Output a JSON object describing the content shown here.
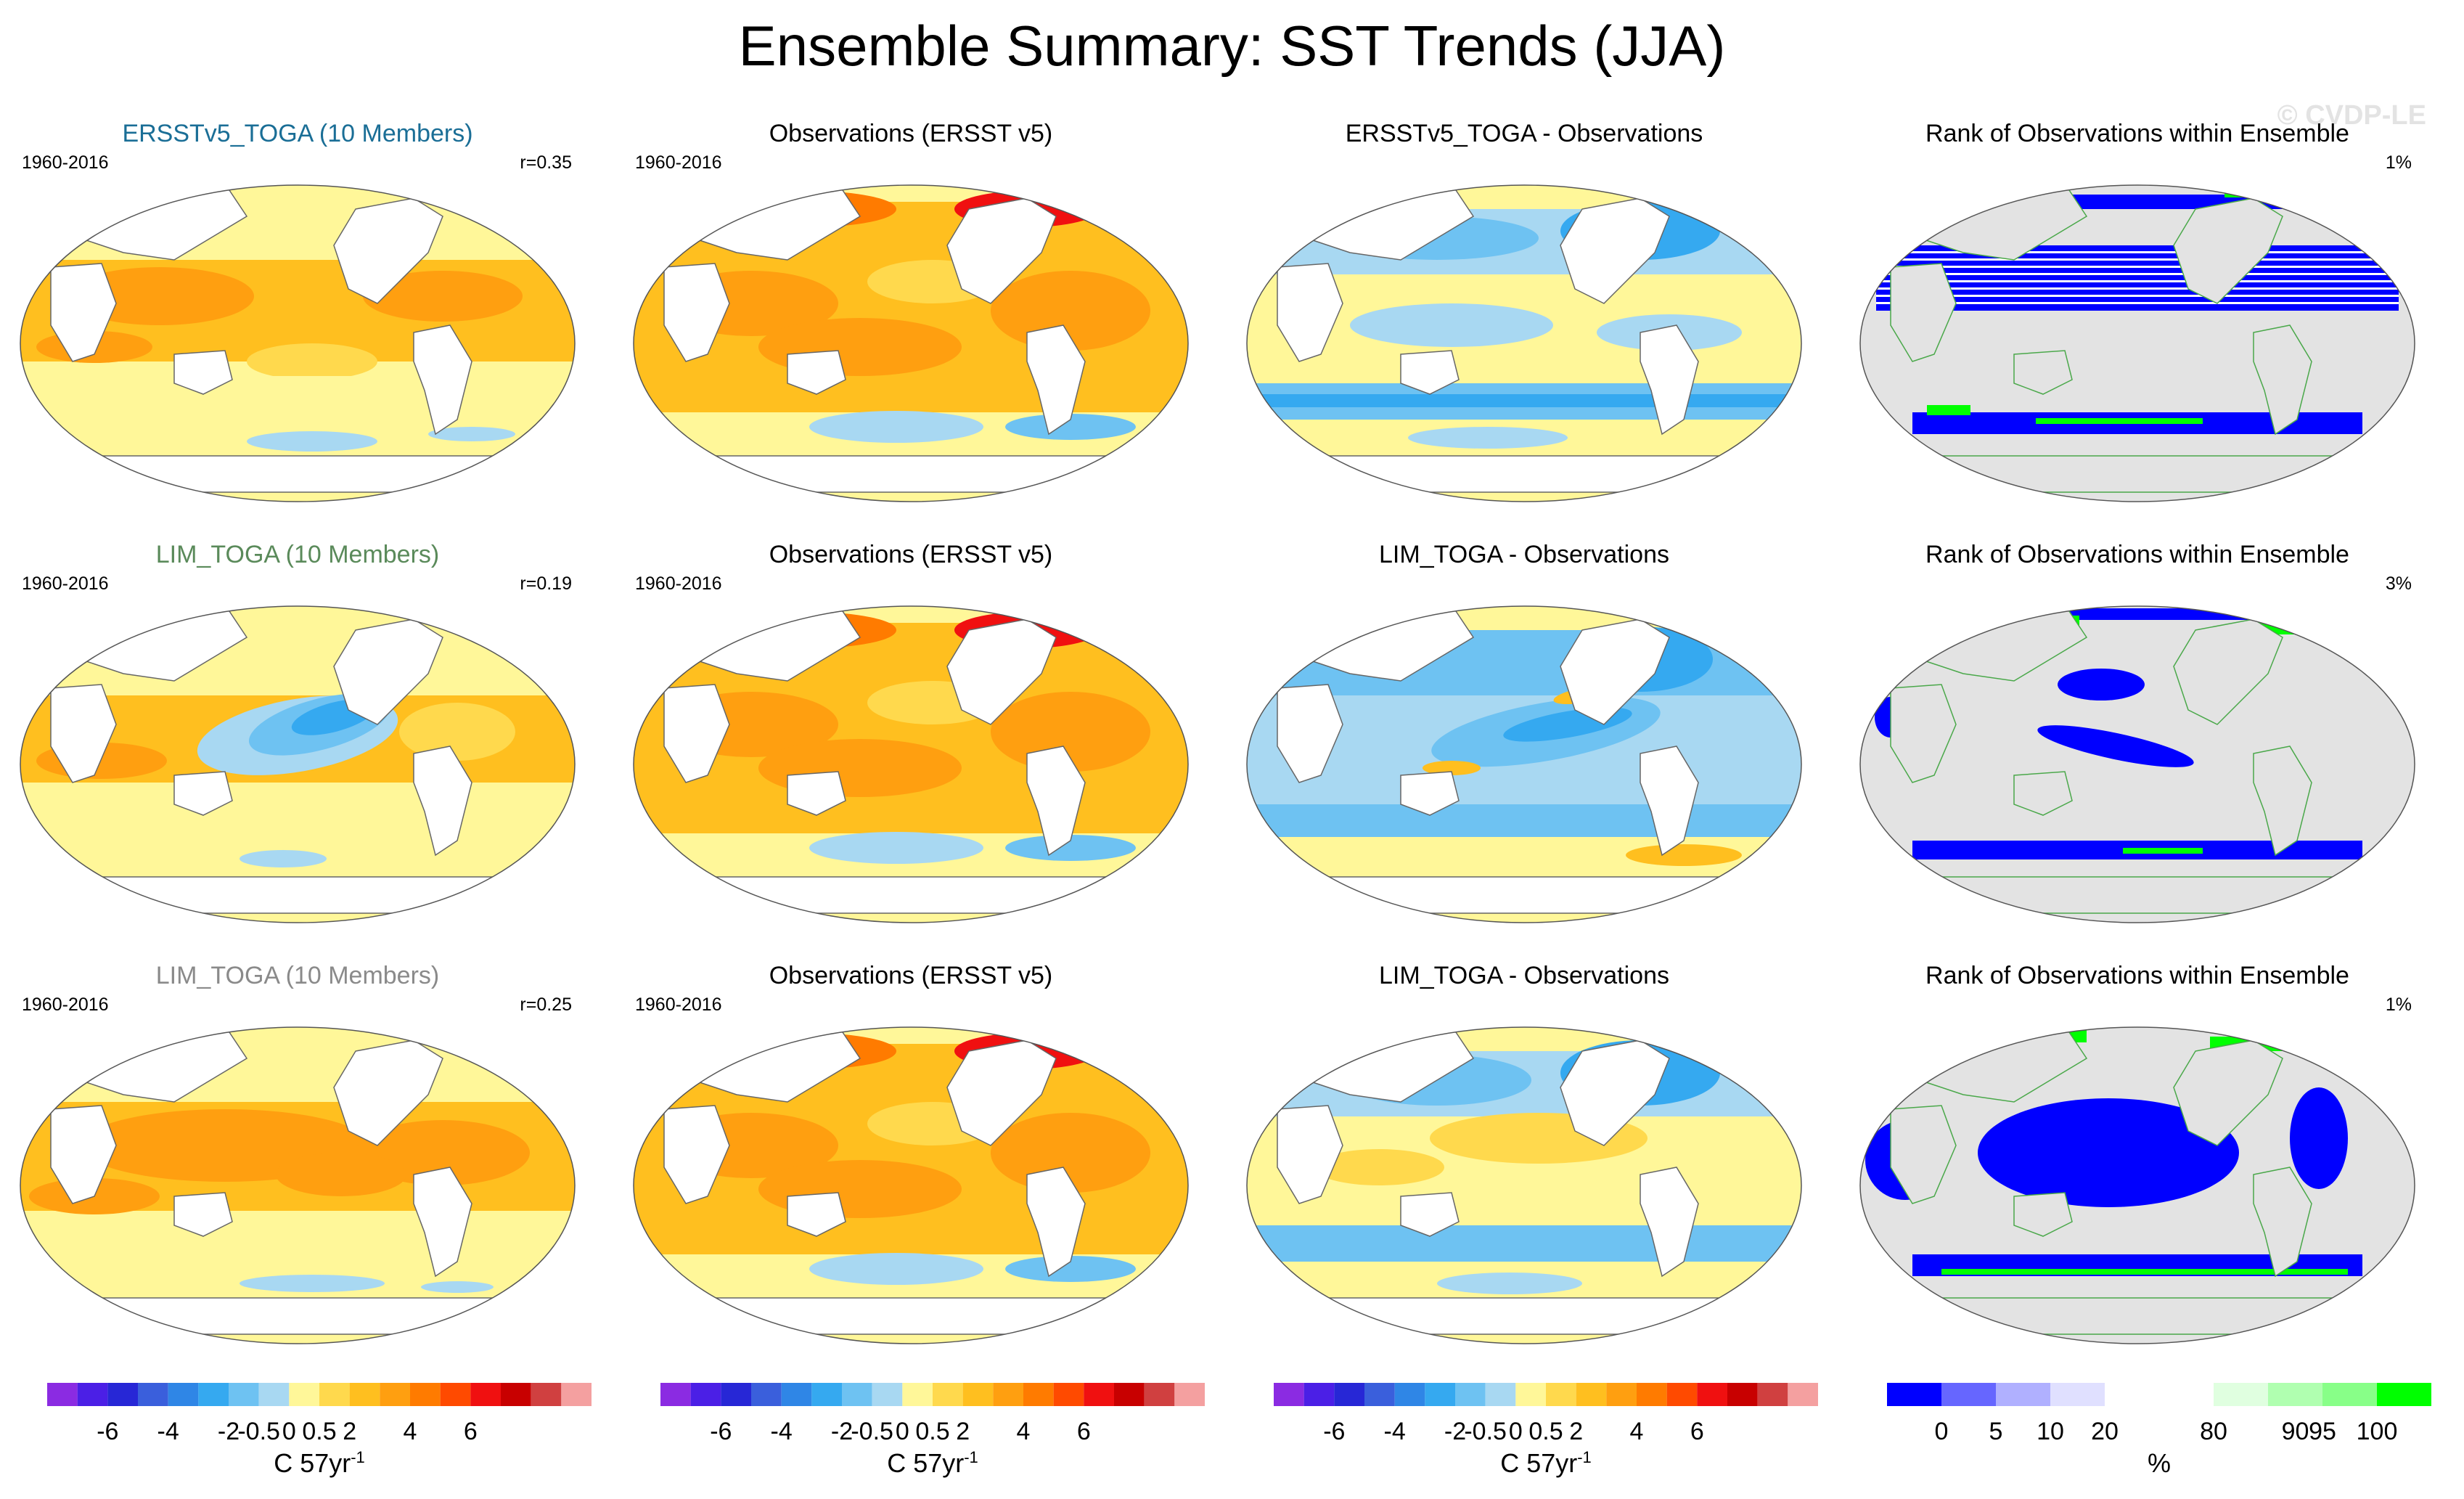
{
  "title": "Ensemble Summary: SST Trends (JJA)",
  "watermark": "© CVDP-LE",
  "rows": [
    {
      "panels": [
        {
          "kind": "model",
          "title": "ERSSTv5_TOGA (10 Members)",
          "title_color": "#1a6e96",
          "period": "1960-2016",
          "r": "r=0.35",
          "pattern": "m1"
        },
        {
          "kind": "obs",
          "title": "Observations (ERSST v5)",
          "title_color": "#000000",
          "period": "1960-2016",
          "r": "",
          "pattern": "obs"
        },
        {
          "kind": "diff",
          "title": "ERSSTv5_TOGA - Observations",
          "title_color": "#000000",
          "period": "",
          "r": "",
          "pattern": "d1"
        },
        {
          "kind": "rank",
          "title": "Rank of Observations within Ensemble",
          "title_color": "#000000",
          "period": "",
          "r": "1%",
          "pattern": "k1"
        }
      ]
    },
    {
      "panels": [
        {
          "kind": "model",
          "title": "LIM_TOGA (10 Members)",
          "title_color": "#5a8a5a",
          "period": "1960-2016",
          "r": "r=0.19",
          "pattern": "m2"
        },
        {
          "kind": "obs",
          "title": "Observations (ERSST v5)",
          "title_color": "#000000",
          "period": "1960-2016",
          "r": "",
          "pattern": "obs"
        },
        {
          "kind": "diff",
          "title": "LIM_TOGA - Observations",
          "title_color": "#000000",
          "period": "",
          "r": "",
          "pattern": "d2"
        },
        {
          "kind": "rank",
          "title": "Rank of Observations within Ensemble",
          "title_color": "#000000",
          "period": "",
          "r": "3%",
          "pattern": "k2"
        }
      ]
    },
    {
      "panels": [
        {
          "kind": "model",
          "title": "LIM_TOGA (10 Members)",
          "title_color": "#8a8a8a",
          "period": "1960-2016",
          "r": "r=0.25",
          "pattern": "m3"
        },
        {
          "kind": "obs",
          "title": "Observations (ERSST v5)",
          "title_color": "#000000",
          "period": "1960-2016",
          "r": "",
          "pattern": "obs"
        },
        {
          "kind": "diff",
          "title": "LIM_TOGA - Observations",
          "title_color": "#000000",
          "period": "",
          "r": "",
          "pattern": "d3"
        },
        {
          "kind": "rank",
          "title": "Rank of Observations within Ensemble",
          "title_color": "#000000",
          "period": "",
          "r": "1%",
          "pattern": "k3"
        }
      ]
    }
  ],
  "colorbars": {
    "sst": {
      "colors": [
        "#8b2be2",
        "#4b1fe6",
        "#2727d6",
        "#3a5fdc",
        "#2f86e6",
        "#35a9f0",
        "#6ec2f2",
        "#a8d8f2",
        "#fff799",
        "#ffd94d",
        "#ffbf1f",
        "#ff9f10",
        "#ff7b00",
        "#ff4a00",
        "#f01010",
        "#c80000",
        "#d04040",
        "#f4a0a0"
      ],
      "ticks": [
        {
          "label": "-6",
          "pos": 2
        },
        {
          "label": "-4",
          "pos": 4
        },
        {
          "label": "-2",
          "pos": 6
        },
        {
          "label": "-0.5",
          "pos": 7
        },
        {
          "label": "0",
          "pos": 8
        },
        {
          "label": "0.5",
          "pos": 9
        },
        {
          "label": "2",
          "pos": 10
        },
        {
          "label": "4",
          "pos": 12
        },
        {
          "label": "6",
          "pos": 14
        }
      ],
      "unit_base": "C 57yr",
      "unit_sup": "-1"
    },
    "rank": {
      "colors": [
        "#0000ff",
        "#6666ff",
        "#b0b0ff",
        "#e0e0ff",
        "#ffffff",
        "#ffffff",
        "#e0ffe0",
        "#b0ffb0",
        "#88ff88",
        "#00ff00"
      ],
      "ticks": [
        {
          "label": "0",
          "pos": 1
        },
        {
          "label": "5",
          "pos": 2
        },
        {
          "label": "10",
          "pos": 3
        },
        {
          "label": "20",
          "pos": 4
        },
        {
          "label": "80",
          "pos": 6
        },
        {
          "label": "90",
          "pos": 7.5
        },
        {
          "label": "95",
          "pos": 8
        },
        {
          "label": "100",
          "pos": 9
        }
      ],
      "unit_base": "%",
      "unit_sup": ""
    }
  },
  "chart_data": [
    {
      "type": "heatmap",
      "title": "ERSSTv5_TOGA (10 Members)",
      "subtitle": "1960-2016",
      "annotation": "r=0.35",
      "colorbar_unit": "C 57yr-1",
      "levels": [
        -6,
        -4,
        -2,
        -0.5,
        0,
        0.5,
        2,
        4,
        6
      ]
    },
    {
      "type": "heatmap",
      "title": "Observations (ERSST v5)",
      "subtitle": "1960-2016",
      "colorbar_unit": "C 57yr-1",
      "levels": [
        -6,
        -4,
        -2,
        -0.5,
        0,
        0.5,
        2,
        4,
        6
      ]
    },
    {
      "type": "heatmap",
      "title": "ERSSTv5_TOGA - Observations",
      "colorbar_unit": "C 57yr-1",
      "levels": [
        -6,
        -4,
        -2,
        -0.5,
        0,
        0.5,
        2,
        4,
        6
      ]
    },
    {
      "type": "heatmap",
      "title": "Rank of Observations within Ensemble",
      "annotation": "1%",
      "colorbar_unit": "%",
      "levels": [
        0,
        5,
        10,
        20,
        80,
        90,
        95,
        100
      ]
    },
    {
      "type": "heatmap",
      "title": "LIM_TOGA (10 Members)",
      "subtitle": "1960-2016",
      "annotation": "r=0.19"
    },
    {
      "type": "heatmap",
      "title": "LIM_TOGA - Observations"
    },
    {
      "type": "heatmap",
      "title": "Rank of Observations within Ensemble",
      "annotation": "3%"
    },
    {
      "type": "heatmap",
      "title": "LIM_TOGA (10 Members)",
      "subtitle": "1960-2016",
      "annotation": "r=0.25"
    },
    {
      "type": "heatmap",
      "title": "Rank of Observations within Ensemble",
      "annotation": "1%"
    }
  ]
}
